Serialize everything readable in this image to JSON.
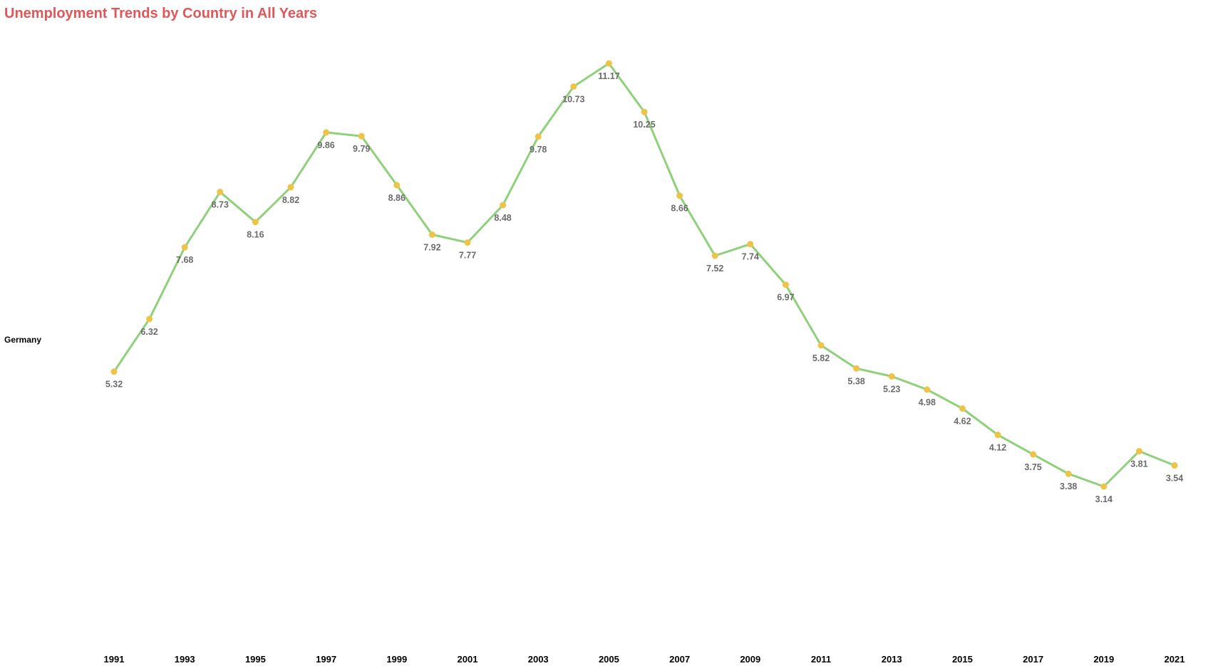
{
  "title": "Unemployment Trends by Country in All Years",
  "colors": {
    "title": "#e15759",
    "line": "#8fd17a",
    "marker": "#edc448",
    "label": "#6b6b6b"
  },
  "chart_data": {
    "type": "line",
    "title": "Unemployment Trends by Country in All Years",
    "xlabel": "",
    "ylabel": "",
    "row_label": "Germany",
    "x": [
      1991,
      1992,
      1993,
      1994,
      1995,
      1996,
      1997,
      1998,
      1999,
      2000,
      2001,
      2002,
      2003,
      2004,
      2005,
      2006,
      2007,
      2008,
      2009,
      2010,
      2011,
      2012,
      2013,
      2014,
      2015,
      2016,
      2017,
      2018,
      2019,
      2020,
      2021
    ],
    "x_tick_labels": [
      "1991",
      "1993",
      "1995",
      "1997",
      "1999",
      "2001",
      "2003",
      "2005",
      "2007",
      "2009",
      "2011",
      "2013",
      "2015",
      "2017",
      "2019",
      "2021"
    ],
    "series": [
      {
        "values": [
          5.32,
          6.32,
          7.68,
          8.73,
          8.16,
          8.82,
          9.86,
          9.79,
          8.86,
          7.92,
          7.77,
          8.48,
          9.78,
          10.73,
          11.17,
          10.25,
          8.66,
          7.52,
          7.74,
          6.97,
          5.82,
          5.38,
          5.23,
          4.98,
          4.62,
          4.12,
          3.75,
          3.38,
          3.14,
          3.81,
          3.54
        ]
      }
    ],
    "data_labels": [
      "5.32",
      "6.32",
      "7.68",
      "8.73",
      "8.16",
      "8.82",
      "9.86",
      "9.79",
      "8.86",
      "7.92",
      "7.77",
      "8.48",
      "9.78",
      "10.73",
      "11.17",
      "10.25",
      "8.66",
      "7.52",
      "7.74",
      "6.97",
      "5.82",
      "5.38",
      "5.23",
      "4.98",
      "4.62",
      "4.12",
      "3.75",
      "3.38",
      "3.14",
      "3.81",
      "3.54"
    ],
    "grid": false,
    "legend": "none"
  }
}
